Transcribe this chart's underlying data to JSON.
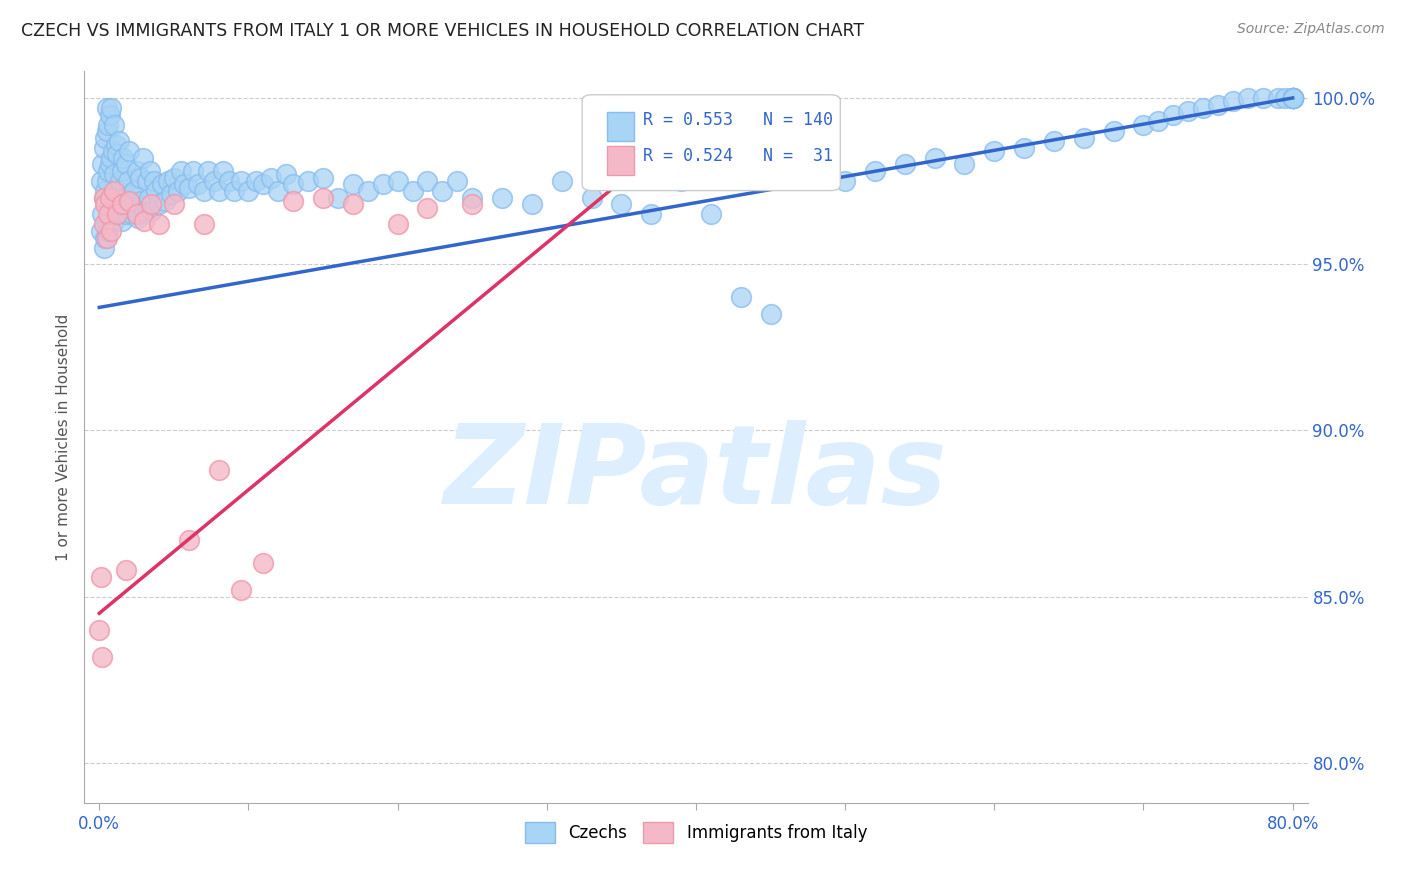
{
  "title": "CZECH VS IMMIGRANTS FROM ITALY 1 OR MORE VEHICLES IN HOUSEHOLD CORRELATION CHART",
  "source": "Source: ZipAtlas.com",
  "ylabel": "1 or more Vehicles in Household",
  "legend_labels": [
    "Czechs",
    "Immigrants from Italy"
  ],
  "blue_R": 0.553,
  "blue_N": 140,
  "pink_R": 0.524,
  "pink_N": 31,
  "blue_color": "#a8d4f5",
  "pink_color": "#f5b8c8",
  "blue_edge_color": "#88bbee",
  "pink_edge_color": "#ee99aa",
  "blue_line_color": "#3366cc",
  "pink_line_color": "#dd3366",
  "watermark_text": "ZIPatlas",
  "watermark_color": "#ddeeff",
  "title_color": "#222222",
  "source_color": "#888888",
  "ylabel_color": "#555555",
  "tick_color": "#3366cc",
  "grid_color": "#cccccc",
  "xlim": [
    -0.01,
    0.81
  ],
  "ylim": [
    0.788,
    1.008
  ],
  "y_tick_vals": [
    0.8,
    0.85,
    0.9,
    0.95,
    1.0
  ],
  "y_tick_labels": [
    "80.0%",
    "85.0%",
    "90.0%",
    "95.0%",
    "100.0%"
  ],
  "blue_line_x0": 0.0,
  "blue_line_y0": 0.937,
  "blue_line_x1": 0.8,
  "blue_line_y1": 1.0,
  "pink_line_x0": 0.0,
  "pink_line_y0": 0.845,
  "pink_line_x1": 0.35,
  "pink_line_y1": 0.975
}
